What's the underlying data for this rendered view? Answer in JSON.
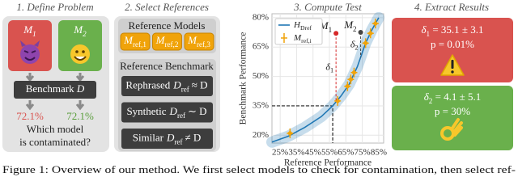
{
  "panels": [
    {
      "title": "1. Define Problem",
      "models": [
        {
          "symbol": "M",
          "subscript": "1",
          "percentage": "72.1%"
        },
        {
          "symbol": "M",
          "subscript": "2",
          "percentage": "72.1%"
        }
      ],
      "benchmark": {
        "label": "Benchmark",
        "symbol": "D"
      },
      "question": [
        "Which model",
        "is contaminated?"
      ]
    },
    {
      "title": "2. Select References",
      "reference_models": {
        "heading": "Reference Models",
        "models": [
          {
            "symbol": "M",
            "subscript": "ref,1"
          },
          {
            "symbol": "M",
            "subscript": "ref,2"
          },
          {
            "symbol": "M",
            "subscript": "ref,3"
          }
        ]
      },
      "reference_benchmark": {
        "heading": "Reference Benchmark",
        "rows": [
          {
            "label": "Rephrased",
            "symbol": "D",
            "subscript": "ref",
            "relation": "≈ D"
          },
          {
            "label": "Synthetic",
            "symbol": "D",
            "subscript": "ref",
            "relation": "∼ D"
          },
          {
            "label": "Similar",
            "symbol": "D",
            "subscript": "ref",
            "relation": "≠ D"
          }
        ]
      }
    },
    {
      "title": "3. Compute Test",
      "chart_data": {
        "type": "scatter",
        "x_label": "Reference Performance",
        "y_label": "Benchmark Performance",
        "xlim": [
          20,
          88
        ],
        "ylim": [
          16,
          82
        ],
        "xticks": [
          {
            "value": 25,
            "label": "25%"
          },
          {
            "value": 35,
            "label": "35%"
          },
          {
            "value": 45,
            "label": "45%"
          },
          {
            "value": 55,
            "label": "55%"
          },
          {
            "value": 65,
            "label": "65%"
          },
          {
            "value": 75,
            "label": "75%"
          },
          {
            "value": 85,
            "label": "85%"
          }
        ],
        "yticks": [
          {
            "value": 20,
            "label": "20%"
          },
          {
            "value": 35,
            "label": "35%"
          },
          {
            "value": 50,
            "label": "50%"
          },
          {
            "value": 65,
            "label": "65%"
          },
          {
            "value": 80,
            "label": "80%"
          }
        ],
        "grid": true,
        "series": [
          {
            "name": "H",
            "name_subscript": "Dref",
            "type": "line",
            "color": "#1f77b4",
            "x": [
              20,
              30,
              40,
              50,
              57,
              62,
              67,
              72,
              77,
              81,
              85
            ],
            "values": [
              16.5,
              19.5,
              24,
              29.5,
              35,
              40,
              46,
              55,
              67,
              74,
              80
            ]
          },
          {
            "name": "M",
            "name_subscript": "ref,i",
            "type": "scatter",
            "color": "#f0a30a",
            "x": [
              31,
              60,
              66,
              68,
              70,
              77,
              80,
              83
            ],
            "values": [
              21,
              37.5,
              45,
              48.5,
              52,
              67,
              72,
              77
            ]
          }
        ],
        "guide": {
          "x": 57,
          "y": 35
        },
        "annotations": [
          {
            "label": "M",
            "subscript": "1",
            "x": 59,
            "y": 72,
            "color": "#d62728",
            "delta": "δ",
            "delta_subscript": "1"
          },
          {
            "label": "M",
            "subscript": "2",
            "x": 74,
            "y": 72.5,
            "color": "#444444",
            "delta": "δ",
            "delta_subscript": "2"
          }
        ]
      }
    },
    {
      "title": "4. Extract Results",
      "results": [
        {
          "delta": "δ",
          "subscript": "1",
          "estimate": " = 35.1 ± 3.1",
          "p": "p = 0.01%"
        },
        {
          "delta": "δ",
          "subscript": "2",
          "estimate": " = 4.1 ± 5.1",
          "p": "p = 30%"
        }
      ]
    }
  ],
  "caption": "Figure 1: Overview of our method. We first select models to check for contamination, then select ref-"
}
